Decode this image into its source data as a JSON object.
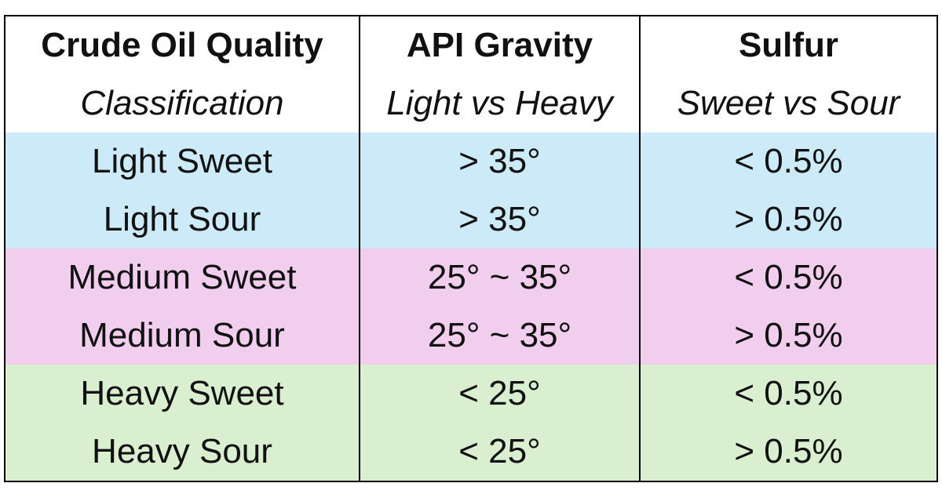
{
  "table": {
    "columns": [
      {
        "title": "Crude Oil Quality",
        "subtitle": "Classification"
      },
      {
        "title": "API Gravity",
        "subtitle": "Light vs Heavy"
      },
      {
        "title": "Sulfur",
        "subtitle": "Sweet vs Sour"
      }
    ],
    "rows": [
      [
        "Light Sweet",
        "> 35°",
        "< 0.5%"
      ],
      [
        "Light Sour",
        "> 35°",
        "> 0.5%"
      ],
      [
        "Medium Sweet",
        "25° ~ 35°",
        "< 0.5%"
      ],
      [
        "Medium Sour",
        "25° ~ 35°",
        "> 0.5%"
      ],
      [
        "Heavy Sweet",
        "< 25°",
        "< 0.5%"
      ],
      [
        "Heavy Sour",
        "< 25°",
        "> 0.5%"
      ]
    ]
  }
}
